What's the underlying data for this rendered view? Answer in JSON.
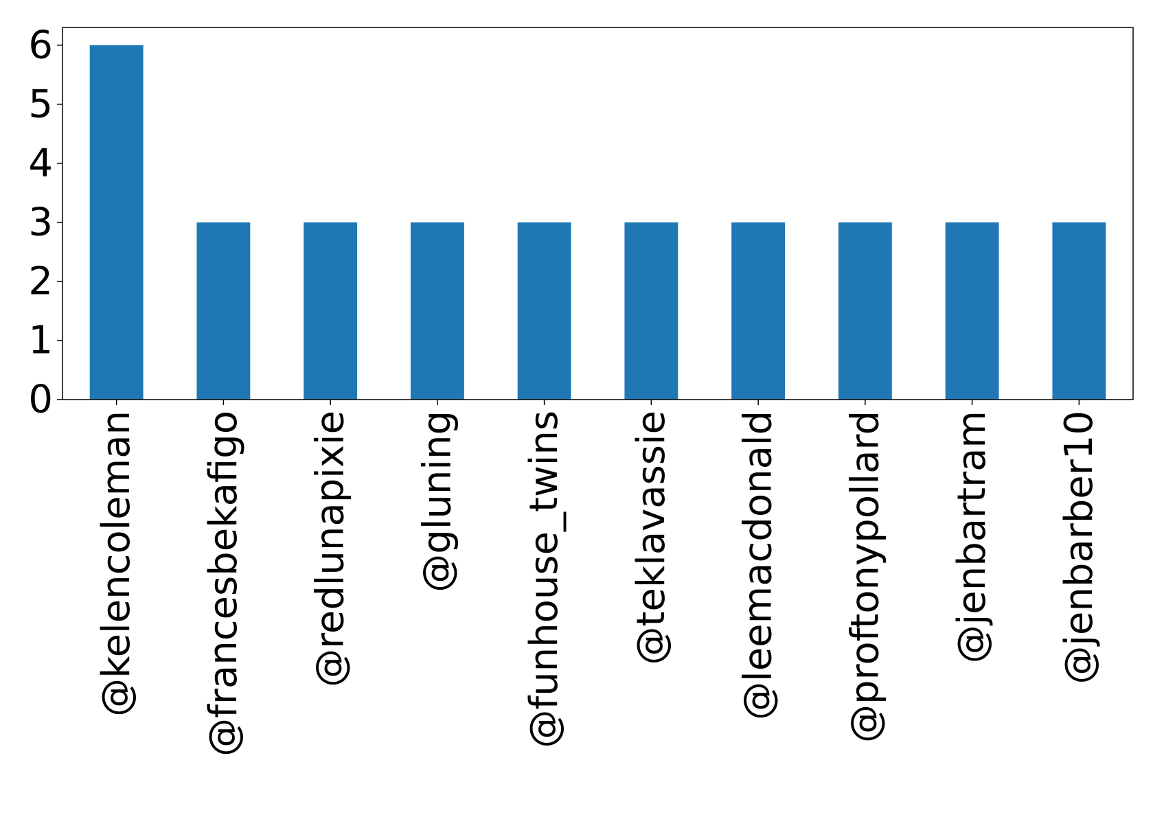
{
  "chart_data": {
    "type": "bar",
    "title": "",
    "xlabel": "",
    "ylabel": "",
    "categories": [
      "@kelencoleman",
      "@francesbekafigo",
      "@redlunapixie",
      "@gluning",
      "@funhouse_twins",
      "@teklavassie",
      "@leemacdonald",
      "@proftonypollard",
      "@jenbartram",
      "@jenbarber10"
    ],
    "values": [
      6,
      3,
      3,
      3,
      3,
      3,
      3,
      3,
      3,
      3
    ],
    "ylim": [
      0,
      6.3
    ],
    "yticks": [
      0,
      1,
      2,
      3,
      4,
      5,
      6
    ],
    "grid": false,
    "legend": "none",
    "bar_color": "#1f77b4"
  }
}
